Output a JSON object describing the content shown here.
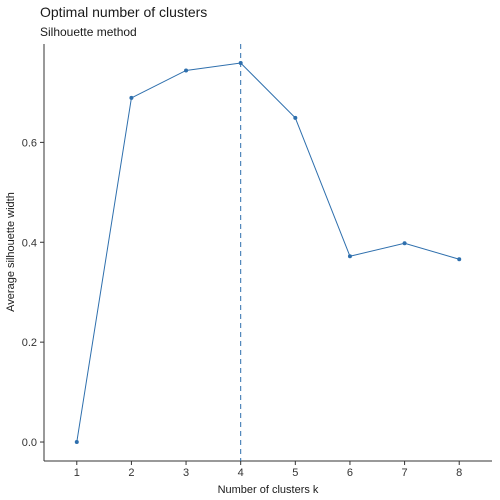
{
  "chart_data": {
    "type": "line",
    "title": "Optimal number of clusters",
    "subtitle": "Silhouette method",
    "xlabel": "Number of clusters k",
    "ylabel": "Average silhouette width",
    "x": [
      1,
      2,
      3,
      4,
      5,
      6,
      7,
      8
    ],
    "y": [
      0.0,
      0.689,
      0.744,
      0.759,
      0.649,
      0.372,
      0.398,
      0.366
    ],
    "xticks": [
      "1",
      "2",
      "3",
      "4",
      "5",
      "6",
      "7",
      "8"
    ],
    "yticks": [
      "0.0",
      "0.2",
      "0.4",
      "0.6"
    ],
    "xlim": [
      0.4,
      8.6
    ],
    "ylim": [
      -0.038,
      0.797
    ],
    "optimal_k": 4,
    "grid": false,
    "line_color": "#2e6fad",
    "vline_color": "#2e6fad"
  }
}
